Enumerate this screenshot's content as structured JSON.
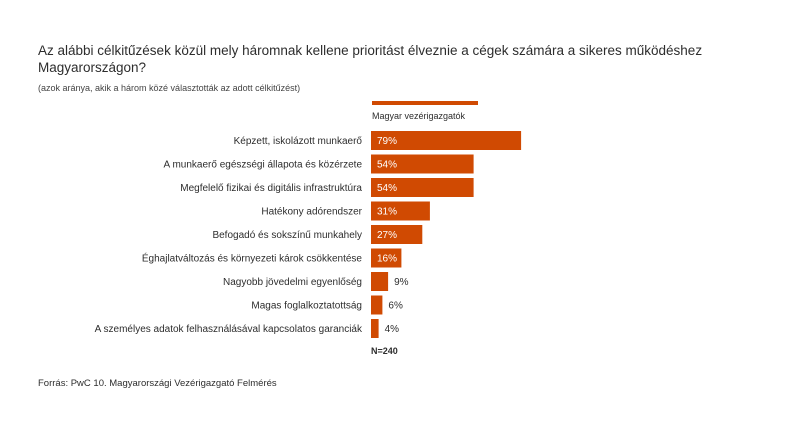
{
  "title": "Az alábbi célkitűzések közül mely háromnak kellene prioritást élveznie a cégek számára a sikeres működéshez Magyarországon?",
  "subtitle": "(azok aránya, akik a három közé választották az adott célkitűzést)",
  "source": "Forrás: PwC 10. Magyarországi Vezérigazgató Felmérés",
  "sample_note": "N=240",
  "colors": {
    "bar": "#d04a02",
    "text": "#2d2d2d",
    "label_on_bar": "#ffffff"
  },
  "chart_data": {
    "type": "bar",
    "orientation": "horizontal",
    "categories": [
      "Képzett, iskolázott munkaerő",
      "A munkaerő egészségi állapota és közérzete",
      "Megfelelő fizikai és digitális infrastruktúra",
      "Hatékony adórendszer",
      "Befogadó és sokszínű munkahely",
      "Éghajlatváltozás és környezeti károk csökkentése",
      "Nagyobb jövedelmi egyenlőség",
      "Magas foglalkoztatottság",
      "A személyes adatok felhasználásával kapcsolatos garanciák"
    ],
    "series": [
      {
        "name": "Magyar vezérigazgatók",
        "values": [
          79,
          54,
          54,
          31,
          27,
          16,
          9,
          6,
          4
        ],
        "value_labels": [
          "79%",
          "54%",
          "54%",
          "31%",
          "27%",
          "16%",
          "9%",
          "6%",
          "4%"
        ]
      }
    ],
    "xlim": [
      0,
      100
    ],
    "legend_position": "top",
    "grid": false
  }
}
